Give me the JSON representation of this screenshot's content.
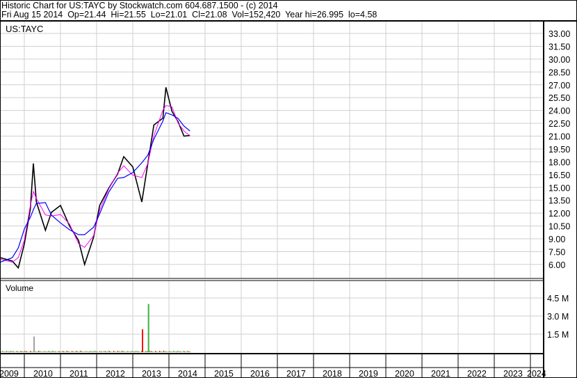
{
  "header": {
    "line1": "Historic Chart for US:TAYC by Stockwatch.com 604.687.1500 - (c) 2014",
    "line2": "Fri Aug 15 2014  Op=21.44  Hi=21.55  Lo=21.01  Cl=21.08  Vol=152,420  Year hi=26.995  lo=4.58"
  },
  "chart_data": [
    {
      "type": "line",
      "title": "US:TAYC",
      "x_unit": "date",
      "ylim": [
        5,
        34
      ],
      "y_ticks": [
        "33.00",
        "31.50",
        "30.00",
        "28.50",
        "27.00",
        "25.50",
        "24.00",
        "22.50",
        "21.00",
        "19.50",
        "18.00",
        "16.50",
        "15.00",
        "13.50",
        "12.00",
        "10.50",
        "9.00",
        "7.50",
        "6.00"
      ],
      "grid": true,
      "series": [
        {
          "color": "#000000",
          "points": [
            [
              "2009-05",
              6.8
            ],
            [
              "2009-09",
              6.4
            ],
            [
              "2009-11",
              5.6
            ],
            [
              "2010-01",
              8.4
            ],
            [
              "2010-03",
              12.5
            ],
            [
              "2010-04",
              17.8
            ],
            [
              "2010-05",
              13.3
            ],
            [
              "2010-08",
              10.0
            ],
            [
              "2010-10",
              12.1
            ],
            [
              "2011-01",
              12.9
            ],
            [
              "2011-04",
              10.5
            ],
            [
              "2011-07",
              8.8
            ],
            [
              "2011-09",
              6.0
            ],
            [
              "2011-12",
              9.2
            ],
            [
              "2012-02",
              12.9
            ],
            [
              "2012-05",
              14.9
            ],
            [
              "2012-08",
              16.6
            ],
            [
              "2012-10",
              18.6
            ],
            [
              "2013-01",
              17.4
            ],
            [
              "2013-04",
              13.3
            ],
            [
              "2013-06",
              17.8
            ],
            [
              "2013-08",
              22.3
            ],
            [
              "2013-11",
              23.1
            ],
            [
              "2013-12",
              26.7
            ],
            [
              "2014-02",
              23.9
            ],
            [
              "2014-04",
              22.7
            ],
            [
              "2014-06",
              21.0
            ],
            [
              "2014-08",
              21.08
            ]
          ]
        },
        {
          "color": "#ff00ff"
        },
        {
          "color": "#0000ff"
        }
      ]
    },
    {
      "type": "bar",
      "title": "Volume",
      "y_ticks": [
        "4.5 M",
        "3.0 M",
        "1.5 M"
      ],
      "ylim": [
        0,
        6000000
      ],
      "colors": {
        "up": "#3cb043",
        "down": "#ff0000",
        "flat": "#a0a0a0"
      },
      "spikes": [
        {
          "date": "2010-04",
          "value": 1300000,
          "dir": "flat"
        },
        {
          "date": "2013-04",
          "value": 1900000,
          "dir": "down"
        },
        {
          "date": "2013-06",
          "value": 4000000,
          "dir": "up"
        }
      ],
      "baseline_volume": 100000
    }
  ],
  "x_axis": {
    "years": [
      "2009",
      "2010",
      "2011",
      "2012",
      "2013",
      "2014",
      "2015",
      "2016",
      "2017",
      "2018",
      "2019",
      "2020",
      "2021",
      "2022",
      "2023",
      "2024"
    ]
  }
}
